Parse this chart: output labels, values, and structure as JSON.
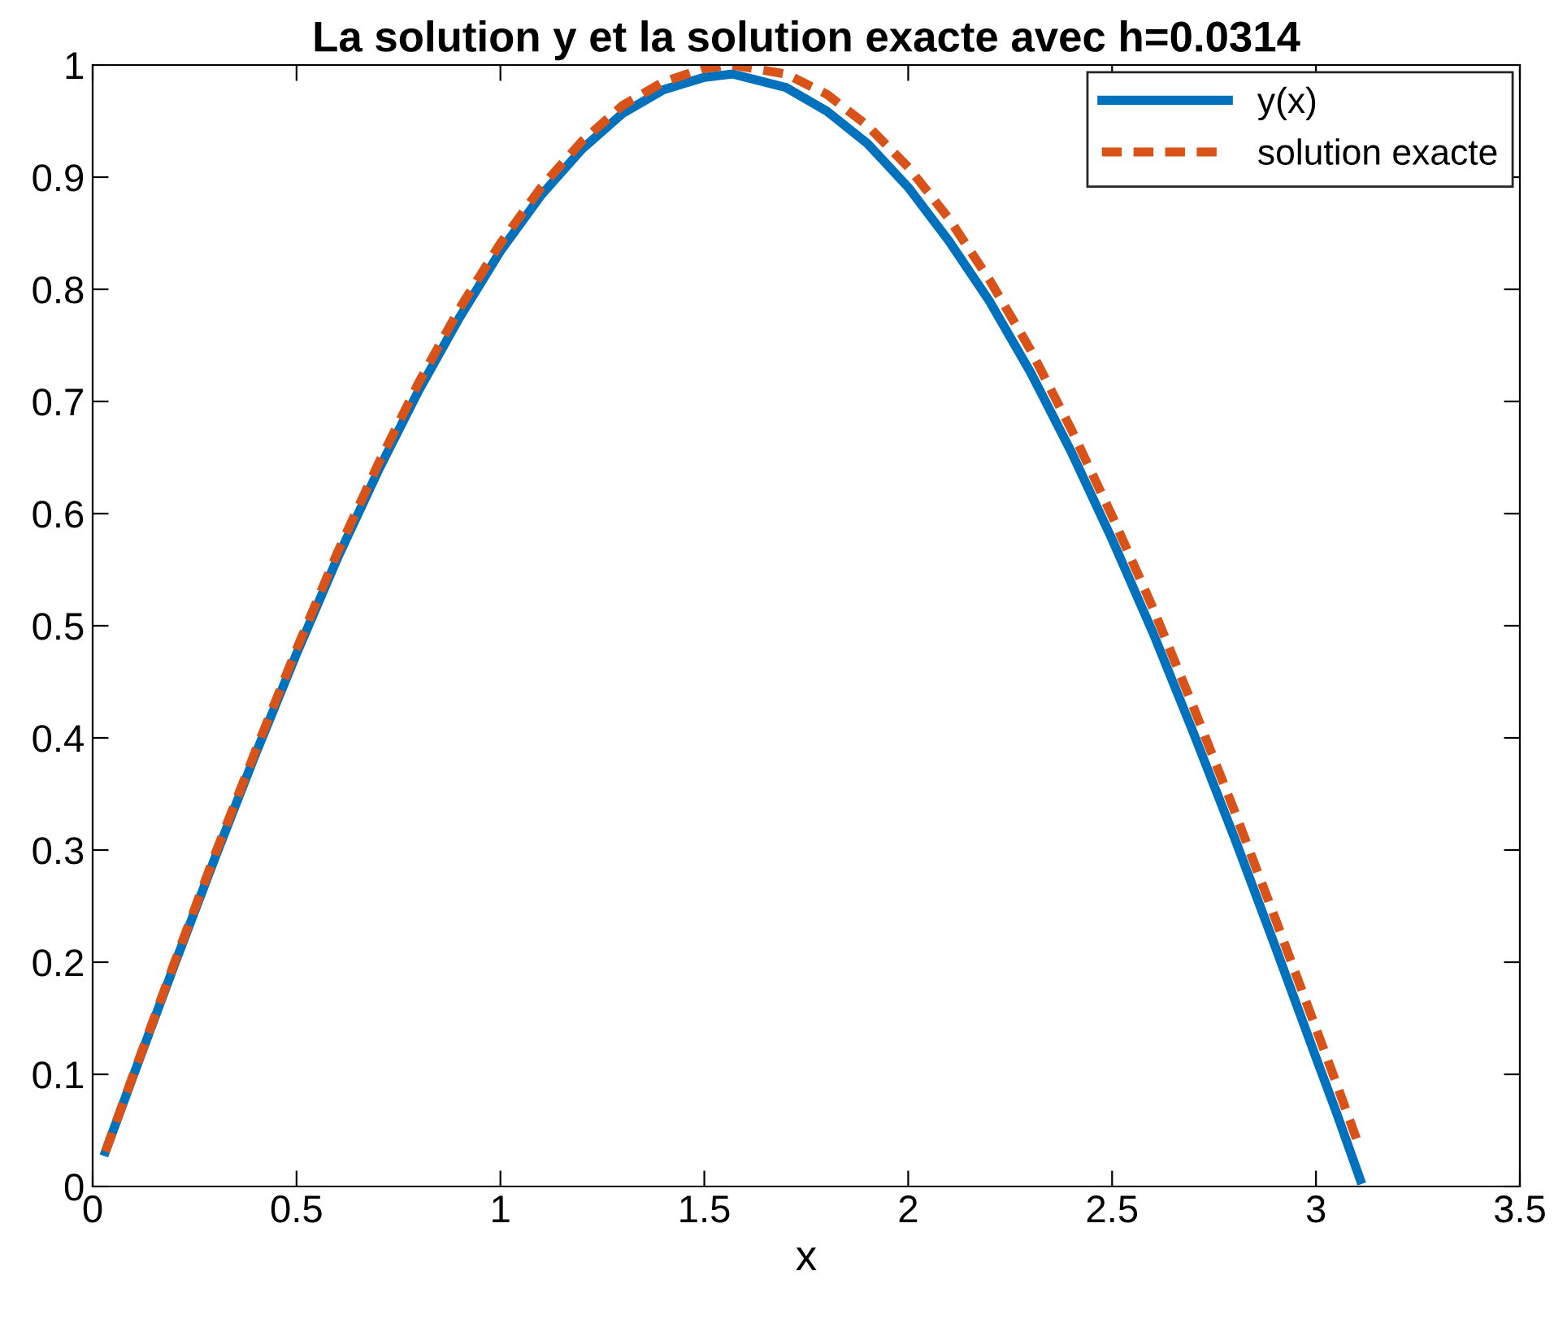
{
  "chart_data": {
    "type": "line",
    "title": "La solution y et la solution exacte avec h=0.0314",
    "xlabel": "x",
    "xlim": [
      0,
      3.5
    ],
    "xticks": [
      0,
      0.5,
      1,
      1.5,
      2,
      2.5,
      3,
      3.5
    ],
    "ylim": [
      0,
      1
    ],
    "yticks": [
      0,
      0.1,
      0.2,
      0.3,
      0.4,
      0.5,
      0.6,
      0.7,
      0.8,
      0.9,
      1
    ],
    "grid": false,
    "legend": "top right",
    "series": [
      {
        "name": "y(x)",
        "color": "#0072bd",
        "line_style": "solid",
        "x": [
          0.0314,
          0.1,
          0.2,
          0.3,
          0.4,
          0.5,
          0.6,
          0.7,
          0.8,
          0.9,
          1.0,
          1.1,
          1.2,
          1.3,
          1.4,
          1.5,
          1.57,
          1.7,
          1.8,
          1.9,
          2.0,
          2.1,
          2.2,
          2.3,
          2.4,
          2.5,
          2.6,
          2.7,
          2.8,
          2.9,
          3.0,
          3.05,
          3.1086
        ],
        "values": [
          0.031,
          0.099,
          0.197,
          0.293,
          0.386,
          0.475,
          0.56,
          0.638,
          0.71,
          0.775,
          0.834,
          0.884,
          0.925,
          0.957,
          0.978,
          0.989,
          0.992,
          0.98,
          0.959,
          0.93,
          0.891,
          0.843,
          0.789,
          0.726,
          0.655,
          0.577,
          0.494,
          0.404,
          0.311,
          0.214,
          0.115,
          0.066,
          0.006
        ]
      },
      {
        "name": "solution exacte",
        "color": "#d95319",
        "line_style": "dashed",
        "x": [
          0.0314,
          0.1,
          0.2,
          0.3,
          0.4,
          0.5,
          0.6,
          0.7,
          0.8,
          0.9,
          1.0,
          1.1,
          1.2,
          1.3,
          1.4,
          1.5,
          1.57,
          1.7,
          1.8,
          1.9,
          2.0,
          2.1,
          2.2,
          2.3,
          2.4,
          2.5,
          2.6,
          2.7,
          2.8,
          2.9,
          3.0,
          3.05,
          3.1086
        ],
        "values": [
          0.031,
          0.1,
          0.199,
          0.296,
          0.389,
          0.479,
          0.565,
          0.644,
          0.717,
          0.783,
          0.841,
          0.891,
          0.932,
          0.964,
          0.985,
          0.997,
          1.0,
          0.992,
          0.974,
          0.946,
          0.909,
          0.863,
          0.808,
          0.746,
          0.675,
          0.598,
          0.516,
          0.427,
          0.335,
          0.239,
          0.141,
          0.092,
          0.033
        ]
      }
    ]
  }
}
